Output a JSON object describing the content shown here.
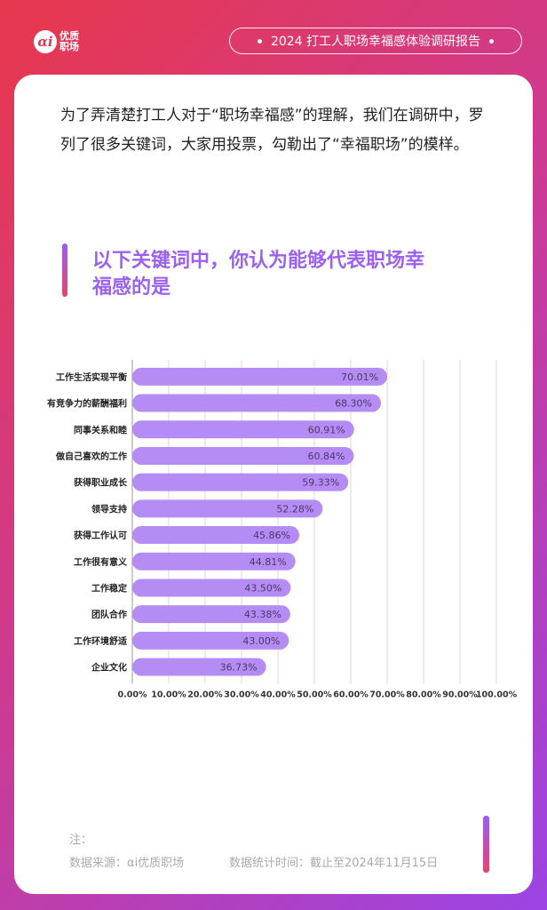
{
  "header": {
    "logo_mark": "αi",
    "logo_line1": "优质",
    "logo_line2": "职场",
    "report_title": "2024 打工人职场幸福感体验调研报告"
  },
  "intro": "为了弄清楚打工人对于“职场幸福感”的理解，我们在调研中，罗列了很多关键词，大家用投票，勾勒出了“幸福职场”的模样。",
  "question": "以下关键词中，你认为能够代表职场幸福感的是",
  "chart_data": {
    "type": "bar",
    "orientation": "horizontal",
    "categories": [
      "工作生活实现平衡",
      "有竞争力的薪酬福利",
      "同事关系和睦",
      "做自己喜欢的工作",
      "获得职业成长",
      "领导支持",
      "获得工作认可",
      "工作很有意义",
      "工作稳定",
      "团队合作",
      "工作环境舒适",
      "企业文化"
    ],
    "values": [
      70.01,
      68.3,
      60.91,
      60.84,
      59.33,
      52.28,
      45.86,
      44.81,
      43.5,
      43.38,
      43.0,
      36.73
    ],
    "value_labels": [
      "70.01%",
      "68.30%",
      "60.91%",
      "60.84%",
      "59.33%",
      "52.28%",
      "45.86%",
      "44.81%",
      "43.50%",
      "43.38%",
      "43.00%",
      "36.73%"
    ],
    "x_ticks": [
      "0.00%",
      "10.00%",
      "20.00%",
      "30.00%",
      "40.00%",
      "50.00%",
      "60.00%",
      "70.00%",
      "80.00%",
      "90.00%",
      "100.00%"
    ],
    "xlim": [
      0,
      100
    ],
    "grid": true,
    "bar_color": "#b48cf4"
  },
  "footer": {
    "note_label": "注：",
    "source": "数据来源：αi优质职场",
    "date": "数据统计时间：截止至2024年11月15日"
  }
}
